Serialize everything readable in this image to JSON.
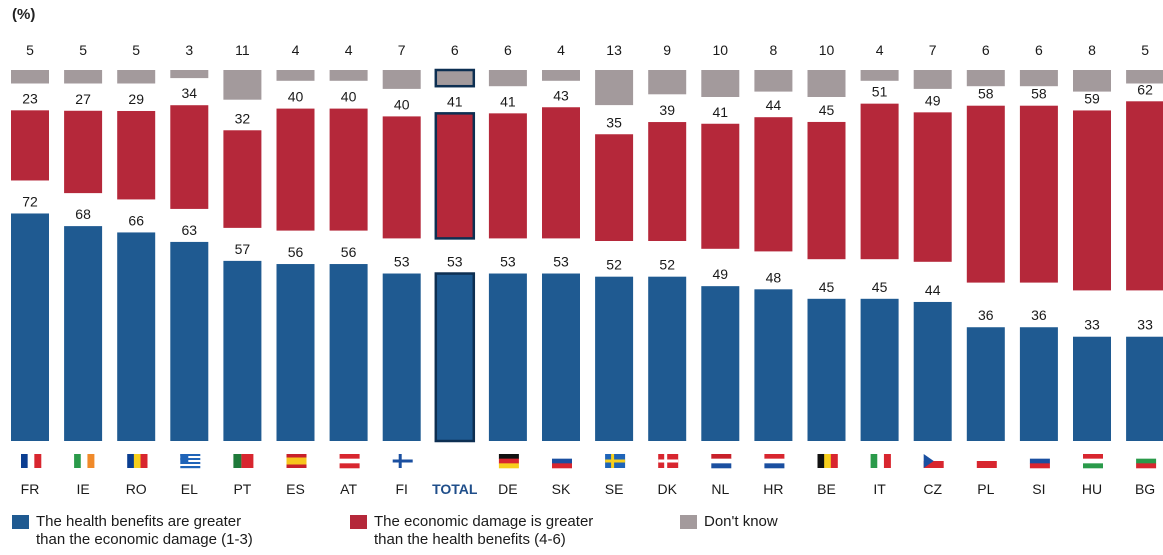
{
  "chart_data": {
    "type": "bar",
    "stacked": true,
    "unit": "(%)",
    "categories": [
      "FR",
      "IE",
      "RO",
      "EL",
      "PT",
      "ES",
      "AT",
      "FI",
      "TOTAL",
      "DE",
      "SK",
      "SE",
      "DK",
      "NL",
      "HR",
      "BE",
      "IT",
      "CZ",
      "PL",
      "SI",
      "HU",
      "BG"
    ],
    "highlight": "TOTAL",
    "series": [
      {
        "key": "health",
        "name": "The health benefits are greater than the economic damage (1-3)",
        "name_lines": [
          "The health benefits are greater",
          "than the economic damage (1-3)"
        ],
        "color": "#1f5a91",
        "values": [
          72,
          68,
          66,
          63,
          57,
          56,
          56,
          53,
          53,
          53,
          53,
          52,
          52,
          49,
          48,
          45,
          45,
          44,
          36,
          36,
          33,
          33
        ]
      },
      {
        "key": "economic",
        "name": "The economic damage is greater than the health benefits (4-6)",
        "name_lines": [
          "The economic damage is greater",
          "than the health benefits (4-6)"
        ],
        "color": "#b5283a",
        "values": [
          23,
          27,
          29,
          34,
          32,
          40,
          40,
          40,
          41,
          41,
          43,
          35,
          39,
          41,
          44,
          45,
          51,
          49,
          58,
          58,
          59,
          62
        ]
      },
      {
        "key": "dontknow",
        "name": "Don't know",
        "name_lines": [
          "Don't know"
        ],
        "color": "#a39a9c",
        "values": [
          5,
          5,
          5,
          3,
          11,
          4,
          4,
          7,
          6,
          6,
          4,
          13,
          9,
          10,
          8,
          10,
          4,
          7,
          6,
          6,
          8,
          5
        ]
      }
    ],
    "flags": {
      "FR": {
        "type": "v",
        "colors": [
          "#0b3e91",
          "#ffffff",
          "#d8262f"
        ]
      },
      "IE": {
        "type": "v",
        "colors": [
          "#2a9a4a",
          "#ffffff",
          "#f08a2a"
        ]
      },
      "RO": {
        "type": "v",
        "colors": [
          "#0b3e91",
          "#f7cf1d",
          "#d8262f"
        ]
      },
      "EL": {
        "type": "stripes",
        "colors": [
          "#1f64b8",
          "#ffffff"
        ]
      },
      "PT": {
        "type": "v2",
        "colors": [
          "#1f7a3a",
          "#d8262f"
        ]
      },
      "ES": {
        "type": "h3",
        "colors": [
          "#c8202a",
          "#f7c51d",
          "#c8202a"
        ]
      },
      "AT": {
        "type": "h",
        "colors": [
          "#d8262f",
          "#ffffff",
          "#d8262f"
        ]
      },
      "FI": {
        "type": "cross",
        "colors": [
          "#ffffff",
          "#1a4fa0"
        ]
      },
      "TOTAL": null,
      "DE": {
        "type": "h",
        "colors": [
          "#111111",
          "#d8262f",
          "#f7cf1d"
        ]
      },
      "SK": {
        "type": "h",
        "colors": [
          "#ffffff",
          "#1a4fa0",
          "#d8262f"
        ]
      },
      "SE": {
        "type": "cross",
        "colors": [
          "#1f64b8",
          "#f7cf1d"
        ]
      },
      "DK": {
        "type": "cross",
        "colors": [
          "#d8262f",
          "#ffffff"
        ]
      },
      "NL": {
        "type": "h",
        "colors": [
          "#c8202a",
          "#ffffff",
          "#1a4fa0"
        ]
      },
      "HR": {
        "type": "h",
        "colors": [
          "#d8262f",
          "#ffffff",
          "#1a4fa0"
        ]
      },
      "BE": {
        "type": "v",
        "colors": [
          "#111111",
          "#f7cf1d",
          "#d8262f"
        ]
      },
      "IT": {
        "type": "v",
        "colors": [
          "#2a9a4a",
          "#ffffff",
          "#d8262f"
        ]
      },
      "CZ": {
        "type": "cz",
        "colors": [
          "#ffffff",
          "#d8262f",
          "#1a4fa0"
        ]
      },
      "PL": {
        "type": "h2",
        "colors": [
          "#ffffff",
          "#d8262f"
        ]
      },
      "SI": {
        "type": "h",
        "colors": [
          "#ffffff",
          "#1a4fa0",
          "#d8262f"
        ]
      },
      "HU": {
        "type": "h",
        "colors": [
          "#d8262f",
          "#ffffff",
          "#2a9a4a"
        ]
      },
      "BG": {
        "type": "h",
        "colors": [
          "#ffffff",
          "#2a9a4a",
          "#d8262f"
        ]
      }
    }
  }
}
